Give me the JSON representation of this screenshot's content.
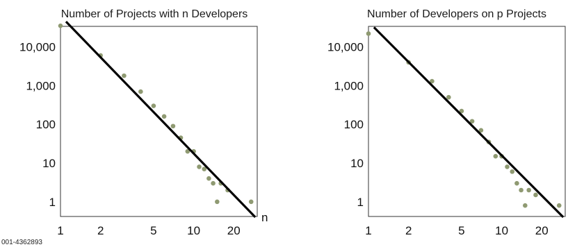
{
  "figure_id": "001-4362893",
  "chart_data": [
    {
      "type": "scatter",
      "title": "Number of Projects with n Developers",
      "xlabel": "n",
      "ylabel": "",
      "scale": "log-log",
      "xlim": [
        1,
        30
      ],
      "ylim": [
        0.3,
        50000
      ],
      "x_ticks": [
        1,
        2,
        5,
        10,
        20
      ],
      "y_ticks": [
        1,
        10,
        100,
        1000,
        10000
      ],
      "x_tick_labels": [
        "1",
        "2",
        "5",
        "10",
        "20"
      ],
      "y_tick_labels": [
        "1",
        "10",
        "100",
        "1,000",
        "10,000"
      ],
      "points": [
        {
          "x": 1,
          "y": 35000
        },
        {
          "x": 2,
          "y": 6000
        },
        {
          "x": 3,
          "y": 1800
        },
        {
          "x": 4,
          "y": 700
        },
        {
          "x": 5,
          "y": 300
        },
        {
          "x": 6,
          "y": 160
        },
        {
          "x": 7,
          "y": 90
        },
        {
          "x": 8,
          "y": 45
        },
        {
          "x": 9,
          "y": 20
        },
        {
          "x": 10,
          "y": 20
        },
        {
          "x": 11,
          "y": 8
        },
        {
          "x": 12,
          "y": 7
        },
        {
          "x": 13,
          "y": 4
        },
        {
          "x": 14,
          "y": 3
        },
        {
          "x": 15,
          "y": 1
        },
        {
          "x": 16,
          "y": 3
        },
        {
          "x": 18,
          "y": 2
        },
        {
          "x": 27,
          "y": 1
        }
      ],
      "fit_line": {
        "x": [
          1.1,
          29
        ],
        "y": [
          45000,
          0.4
        ]
      },
      "point_color": "#8f9a72",
      "line_color": "#000000"
    },
    {
      "type": "scatter",
      "title": "Number of Developers on p Projects",
      "xlabel": "",
      "ylabel": "",
      "scale": "log-log",
      "xlim": [
        1,
        30
      ],
      "ylim": [
        0.3,
        50000
      ],
      "x_ticks": [
        1,
        2,
        5,
        10,
        20
      ],
      "y_ticks": [
        1,
        10,
        100,
        1000,
        10000
      ],
      "x_tick_labels": [
        "1",
        "2",
        "5",
        "10",
        "20"
      ],
      "y_tick_labels": [
        "1",
        "10",
        "100",
        "1,000",
        "10,000"
      ],
      "points": [
        {
          "x": 1,
          "y": 22000
        },
        {
          "x": 2,
          "y": 4000
        },
        {
          "x": 3,
          "y": 1300
        },
        {
          "x": 4,
          "y": 500
        },
        {
          "x": 5,
          "y": 220
        },
        {
          "x": 6,
          "y": 120
        },
        {
          "x": 7,
          "y": 70
        },
        {
          "x": 8,
          "y": 35
        },
        {
          "x": 9,
          "y": 15
        },
        {
          "x": 10,
          "y": 15
        },
        {
          "x": 11,
          "y": 8
        },
        {
          "x": 12,
          "y": 6
        },
        {
          "x": 13,
          "y": 3
        },
        {
          "x": 14,
          "y": 2
        },
        {
          "x": 15,
          "y": 0.8
        },
        {
          "x": 16,
          "y": 2
        },
        {
          "x": 18,
          "y": 1.5
        },
        {
          "x": 27,
          "y": 0.8
        }
      ],
      "fit_line": {
        "x": [
          1.1,
          29
        ],
        "y": [
          32000,
          0.4
        ]
      },
      "point_color": "#8f9a72",
      "line_color": "#000000"
    }
  ]
}
